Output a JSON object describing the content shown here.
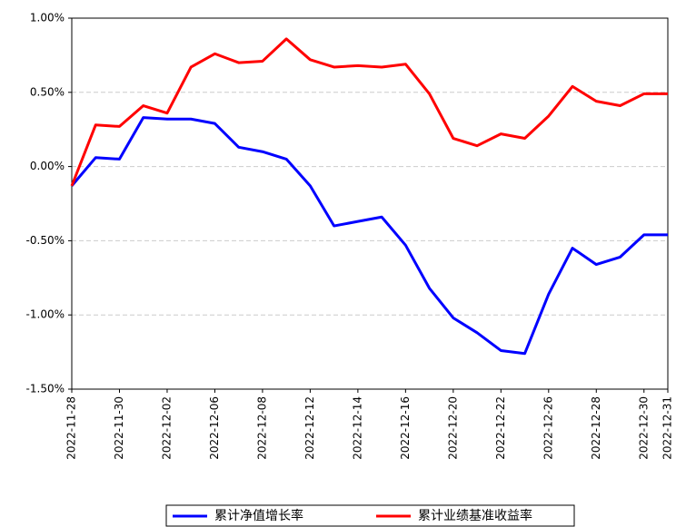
{
  "chart_data": {
    "type": "line",
    "categories": [
      "2022-11-28",
      null,
      "2022-11-30",
      null,
      "2022-12-02",
      null,
      "2022-12-06",
      null,
      "2022-12-08",
      null,
      "2022-12-12",
      null,
      "2022-12-14",
      null,
      "2022-12-16",
      null,
      "2022-12-20",
      null,
      "2022-12-22",
      null,
      "2022-12-26",
      null,
      "2022-12-28",
      null,
      "2022-12-30",
      "2022-12-31"
    ],
    "series": [
      {
        "name": "累计净值增长率",
        "color": "#0000ff",
        "values": [
          -0.13,
          0.06,
          0.05,
          0.33,
          0.32,
          0.32,
          0.29,
          0.13,
          0.1,
          0.05,
          -0.13,
          -0.4,
          -0.37,
          -0.34,
          -0.53,
          -0.82,
          -1.02,
          -1.12,
          -1.24,
          -1.26,
          -0.86,
          -0.55,
          -0.66,
          -0.61,
          -0.46,
          -0.46
        ]
      },
      {
        "name": "累计业绩基准收益率",
        "color": "#ff0000",
        "values": [
          -0.13,
          0.28,
          0.27,
          0.41,
          0.36,
          0.67,
          0.76,
          0.7,
          0.71,
          0.86,
          0.72,
          0.67,
          0.68,
          0.67,
          0.69,
          0.49,
          0.19,
          0.14,
          0.22,
          0.19,
          0.34,
          0.54,
          0.44,
          0.41,
          0.49,
          0.49
        ]
      }
    ],
    "ylim": [
      -1.5,
      1.0
    ],
    "yticks": [
      {
        "value": -1.5,
        "label": "-1.50%"
      },
      {
        "value": -1.0,
        "label": "-1.00%"
      },
      {
        "value": -0.5,
        "label": "-0.50%"
      },
      {
        "value": 0,
        "label": "0.00%"
      },
      {
        "value": 0.5,
        "label": "0.50%"
      },
      {
        "value": 1.0,
        "label": "1.00%"
      }
    ],
    "grid": true,
    "legend": "bottom"
  }
}
